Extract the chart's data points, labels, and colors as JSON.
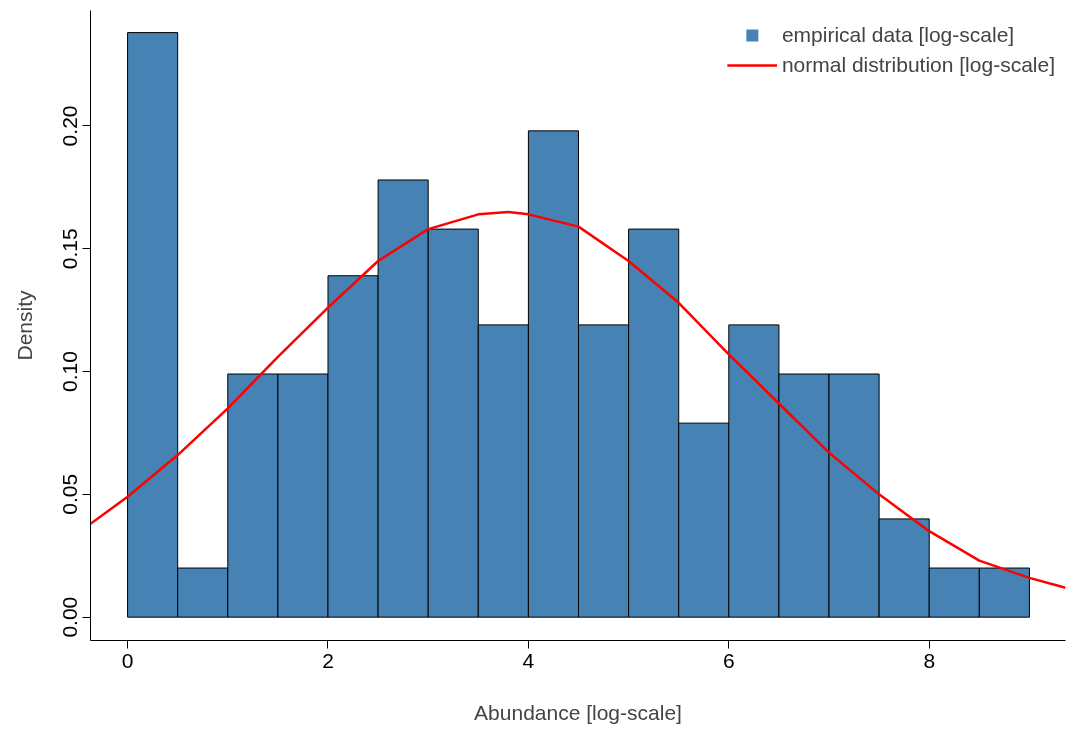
{
  "chart_data": {
    "type": "histogram",
    "xlabel": "Abundance [log-scale]",
    "ylabel": "Density",
    "bins": [
      0,
      0.5,
      1,
      1.5,
      2,
      2.5,
      3,
      3.5,
      4,
      4.5,
      5,
      5.5,
      6,
      6.5,
      7,
      7.5,
      8,
      8.5,
      9
    ],
    "series": [
      {
        "type": "histogram",
        "name": "empirical data [log-scale]",
        "color": "#4682b4",
        "values": [
          0.238,
          0.02,
          0.099,
          0.099,
          0.139,
          0.178,
          0.158,
          0.119,
          0.198,
          0.119,
          0.158,
          0.079,
          0.119,
          0.099,
          0.099,
          0.04,
          0.02,
          0.02
        ]
      },
      {
        "type": "line",
        "name": "normal distribution [log-scale]",
        "color": "#ff0000",
        "x": [
          -0.37,
          0,
          0.5,
          1,
          1.5,
          2,
          2.5,
          3,
          3.5,
          3.8,
          4,
          4.5,
          5,
          5.5,
          6,
          6.5,
          7,
          7.5,
          8,
          8.5,
          9,
          9.36
        ],
        "values": [
          0.038,
          0.049,
          0.066,
          0.085,
          0.106,
          0.126,
          0.145,
          0.158,
          0.164,
          0.165,
          0.164,
          0.159,
          0.145,
          0.128,
          0.107,
          0.087,
          0.067,
          0.05,
          0.035,
          0.023,
          0.016,
          0.012
        ]
      }
    ],
    "xlim": [
      -0.37,
      9.36
    ],
    "ylim": [
      -0.0095,
      0.247
    ],
    "xticks": [
      0,
      2,
      4,
      6,
      8
    ],
    "yticks": [
      {
        "value": 0,
        "label": "0.00"
      },
      {
        "value": 0.05,
        "label": "0.05"
      },
      {
        "value": 0.1,
        "label": "0.10"
      },
      {
        "value": 0.15,
        "label": "0.15"
      },
      {
        "value": 0.2,
        "label": "0.20"
      }
    ],
    "grid": false,
    "legend": "top right"
  }
}
